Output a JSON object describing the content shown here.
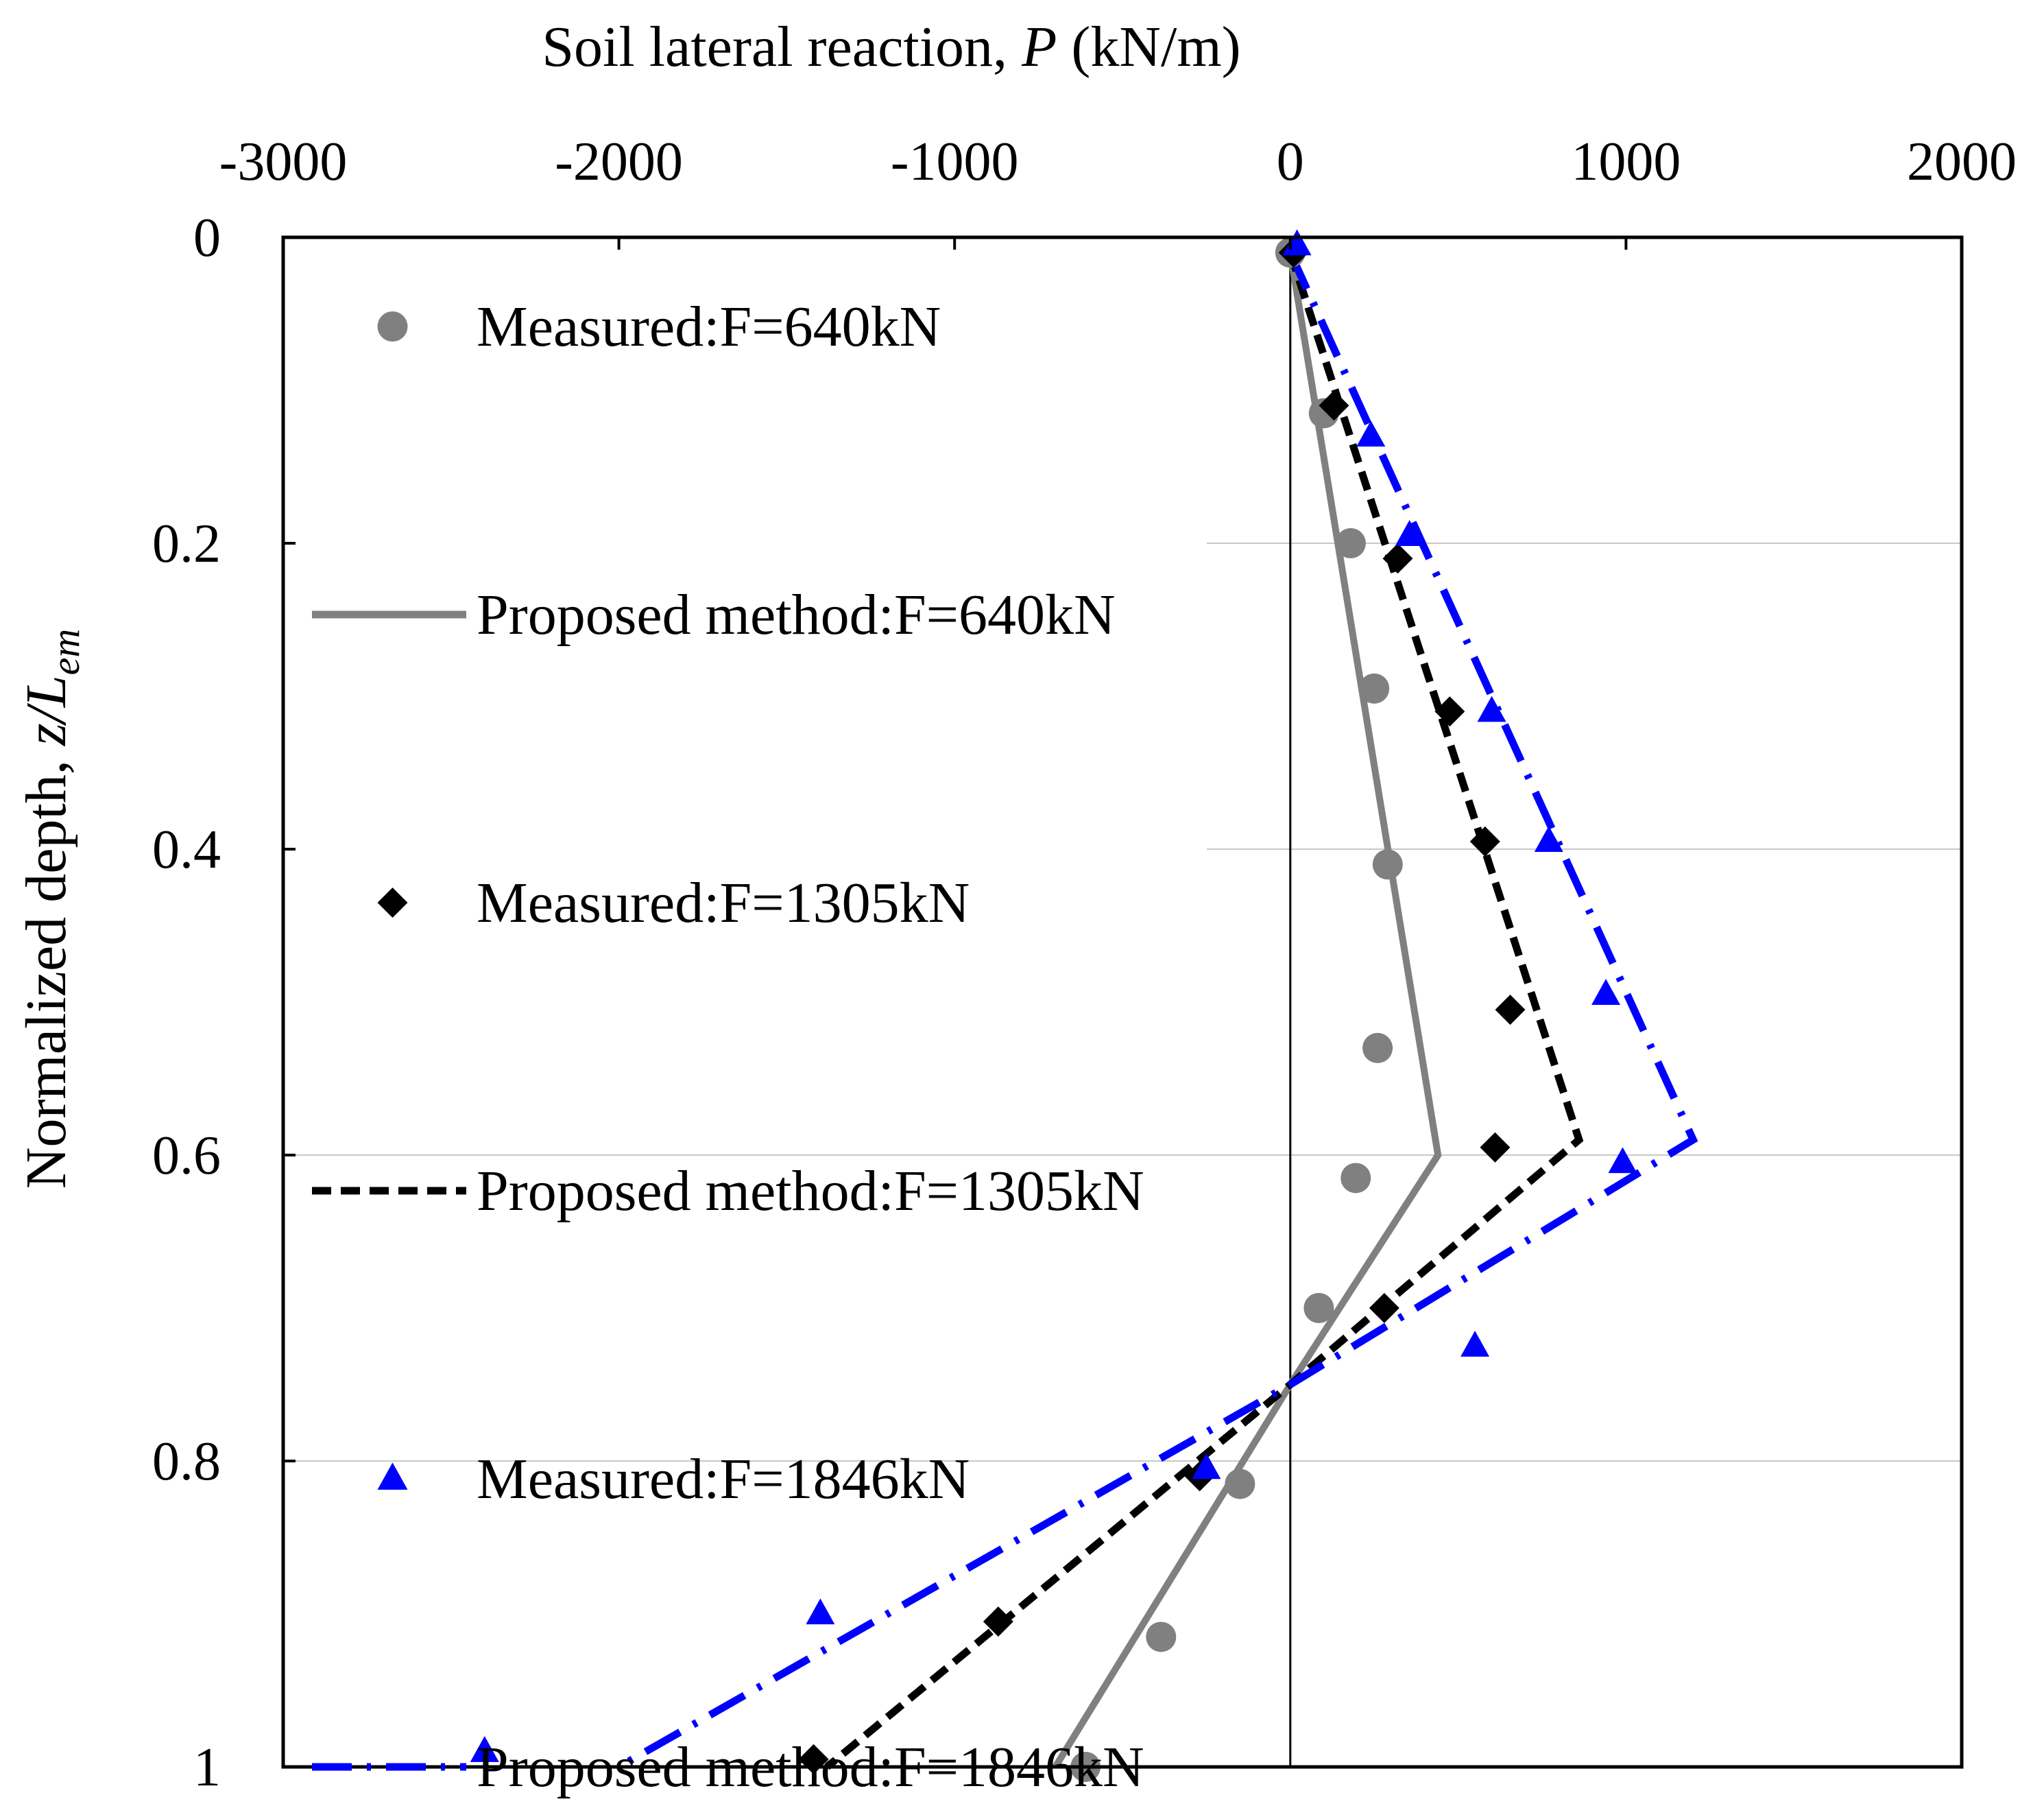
{
  "chart_data": {
    "type": "scatter",
    "title": "",
    "xlabel": {
      "main": "Soil lateral reaction, ",
      "italic": "P",
      "unit": " (kN/m)"
    },
    "ylabel": {
      "main": "Normalized depth, ",
      "italic": "z/L",
      "sub": "em"
    },
    "xlim": [
      -3000,
      2000
    ],
    "ylim": [
      0,
      1
    ],
    "xticks": [
      -3000,
      -2000,
      -1000,
      0,
      1000,
      2000
    ],
    "xtick_labels": [
      "-3000",
      "-2000",
      "-1000",
      "0",
      "1000",
      "2000"
    ],
    "yticks": [
      0,
      0.2,
      0.4,
      0.6,
      0.8,
      1
    ],
    "ytick_labels": [
      "0",
      "0.2",
      "0.4",
      "0.6",
      "0.8",
      "1"
    ],
    "x_axis_position": "top",
    "y_axis_inverted": true,
    "grid": "horizontal",
    "legend_position": "upper-left",
    "series": [
      {
        "name": "Measured:F=640kN",
        "kind": "marker",
        "marker": "circle",
        "color": "#808080",
        "points": [
          [
            0,
            0.01
          ],
          [
            100,
            0.115
          ],
          [
            180,
            0.2
          ],
          [
            250,
            0.295
          ],
          [
            290,
            0.41
          ],
          [
            260,
            0.53
          ],
          [
            195,
            0.615
          ],
          [
            85,
            0.7
          ],
          [
            -150,
            0.815
          ],
          [
            -385,
            0.915
          ],
          [
            -610,
            1.0
          ]
        ]
      },
      {
        "name": "Proposed method:F=640kN",
        "kind": "line",
        "dash": "solid",
        "color": "#808080",
        "points": [
          [
            0,
            0.01
          ],
          [
            440,
            0.6
          ],
          [
            0,
            0.75
          ],
          [
            -700,
            1.0
          ]
        ]
      },
      {
        "name": "Measured:F=1305kN",
        "kind": "marker",
        "marker": "diamond",
        "color": "#000000",
        "points": [
          [
            10,
            0.01
          ],
          [
            130,
            0.11
          ],
          [
            320,
            0.21
          ],
          [
            475,
            0.31
          ],
          [
            580,
            0.395
          ],
          [
            655,
            0.505
          ],
          [
            610,
            0.595
          ],
          [
            280,
            0.7
          ],
          [
            -270,
            0.81
          ],
          [
            -870,
            0.905
          ],
          [
            -1420,
            0.995
          ]
        ]
      },
      {
        "name": "Proposed method:F=1305kN",
        "kind": "line",
        "dash": "dash",
        "color": "#000000",
        "points": [
          [
            0,
            0.01
          ],
          [
            860,
            0.59
          ],
          [
            0,
            0.75
          ],
          [
            -1380,
            1.0
          ]
        ]
      },
      {
        "name": "Measured:F=1846kN",
        "kind": "marker",
        "marker": "triangle",
        "color": "#0000ff",
        "points": [
          [
            20,
            0.005
          ],
          [
            240,
            0.13
          ],
          [
            355,
            0.195
          ],
          [
            600,
            0.31
          ],
          [
            770,
            0.395
          ],
          [
            940,
            0.495
          ],
          [
            990,
            0.605
          ],
          [
            550,
            0.725
          ],
          [
            -250,
            0.805
          ],
          [
            -1400,
            0.9
          ],
          [
            -2400,
            0.99
          ]
        ]
      },
      {
        "name": "Proposed method:F=1846kN",
        "kind": "line",
        "dash": "dashdot",
        "color": "#0000ff",
        "points": [
          [
            0,
            0.01
          ],
          [
            1200,
            0.59
          ],
          [
            0,
            0.75
          ],
          [
            -2000,
            1.0
          ]
        ]
      }
    ]
  }
}
